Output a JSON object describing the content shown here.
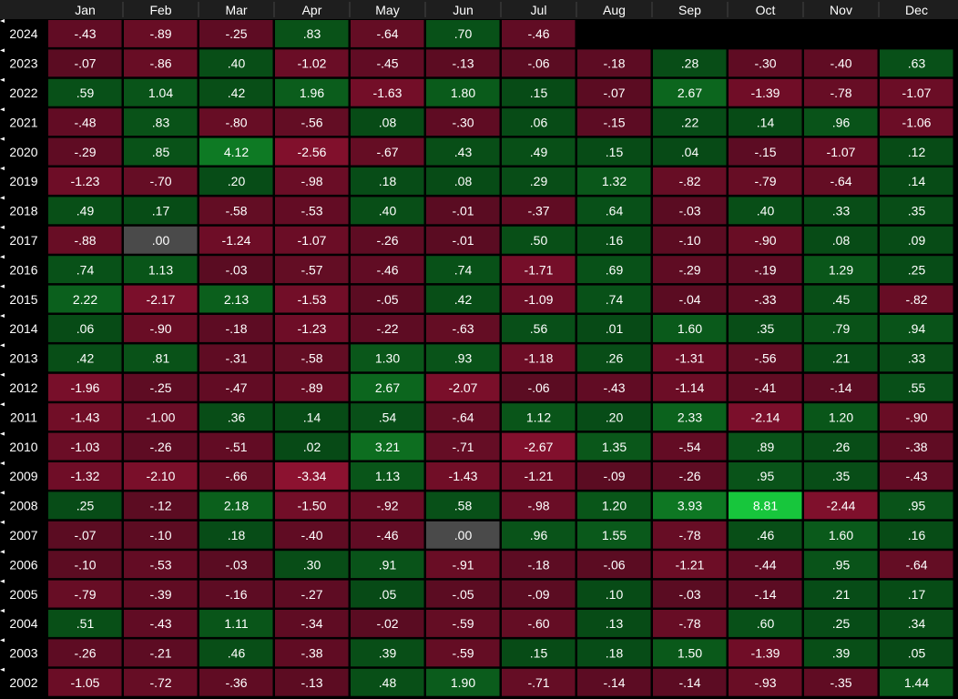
{
  "chart_data": {
    "type": "heatmap",
    "months": [
      "Jan",
      "Feb",
      "Mar",
      "Apr",
      "May",
      "Jun",
      "Jul",
      "Aug",
      "Sep",
      "Oct",
      "Nov",
      "Dec"
    ],
    "rows": [
      {
        "year": "2024",
        "values": [
          -0.43,
          -0.89,
          -0.25,
          0.83,
          -0.64,
          0.7,
          -0.46,
          null,
          null,
          null,
          null,
          null
        ],
        "labels": [
          "-.43",
          "-.89",
          "-.25",
          ".83",
          "-.64",
          ".70",
          "-.46",
          "",
          "",
          "",
          "",
          ""
        ]
      },
      {
        "year": "2023",
        "values": [
          -0.07,
          -0.86,
          0.4,
          -1.02,
          -0.45,
          -0.13,
          -0.06,
          -0.18,
          0.28,
          -0.3,
          -0.4,
          0.63
        ],
        "labels": [
          "-.07",
          "-.86",
          ".40",
          "-1.02",
          "-.45",
          "-.13",
          "-.06",
          "-.18",
          ".28",
          "-.30",
          "-.40",
          ".63"
        ]
      },
      {
        "year": "2022",
        "values": [
          0.59,
          1.04,
          0.42,
          1.96,
          -1.63,
          1.8,
          0.15,
          -0.07,
          2.67,
          -1.39,
          -0.78,
          -1.07
        ],
        "labels": [
          ".59",
          "1.04",
          ".42",
          "1.96",
          "-1.63",
          "1.80",
          ".15",
          "-.07",
          "2.67",
          "-1.39",
          "-.78",
          "-1.07"
        ]
      },
      {
        "year": "2021",
        "values": [
          -0.48,
          0.83,
          -0.8,
          -0.56,
          0.08,
          -0.3,
          0.06,
          -0.15,
          0.22,
          0.14,
          0.96,
          -1.06
        ],
        "labels": [
          "-.48",
          ".83",
          "-.80",
          "-.56",
          ".08",
          "-.30",
          ".06",
          "-.15",
          ".22",
          ".14",
          ".96",
          "-1.06"
        ]
      },
      {
        "year": "2020",
        "values": [
          -0.29,
          0.85,
          4.12,
          -2.56,
          -0.67,
          0.43,
          0.49,
          0.15,
          0.04,
          -0.15,
          -1.07,
          0.12
        ],
        "labels": [
          "-.29",
          ".85",
          "4.12",
          "-2.56",
          "-.67",
          ".43",
          ".49",
          ".15",
          ".04",
          "-.15",
          "-1.07",
          ".12"
        ]
      },
      {
        "year": "2019",
        "values": [
          -1.23,
          -0.7,
          0.2,
          -0.98,
          0.18,
          0.08,
          0.29,
          1.32,
          -0.82,
          -0.79,
          -0.64,
          0.14
        ],
        "labels": [
          "-1.23",
          "-.70",
          ".20",
          "-.98",
          ".18",
          ".08",
          ".29",
          "1.32",
          "-.82",
          "-.79",
          "-.64",
          ".14"
        ]
      },
      {
        "year": "2018",
        "values": [
          0.49,
          0.17,
          -0.58,
          -0.53,
          0.4,
          -0.01,
          -0.37,
          0.64,
          -0.03,
          0.4,
          0.33,
          0.35
        ],
        "labels": [
          ".49",
          ".17",
          "-.58",
          "-.53",
          ".40",
          "-.01",
          "-.37",
          ".64",
          "-.03",
          ".40",
          ".33",
          ".35"
        ]
      },
      {
        "year": "2017",
        "values": [
          -0.88,
          0.0,
          -1.24,
          -1.07,
          -0.26,
          -0.01,
          0.5,
          0.16,
          -0.1,
          -0.9,
          0.08,
          0.09
        ],
        "labels": [
          "-.88",
          ".00",
          "-1.24",
          "-1.07",
          "-.26",
          "-.01",
          ".50",
          ".16",
          "-.10",
          "-.90",
          ".08",
          ".09"
        ]
      },
      {
        "year": "2016",
        "values": [
          0.74,
          1.13,
          -0.03,
          -0.57,
          -0.46,
          0.74,
          -1.71,
          0.69,
          -0.29,
          -0.19,
          1.29,
          0.25
        ],
        "labels": [
          ".74",
          "1.13",
          "-.03",
          "-.57",
          "-.46",
          ".74",
          "-1.71",
          ".69",
          "-.29",
          "-.19",
          "1.29",
          ".25"
        ]
      },
      {
        "year": "2015",
        "values": [
          2.22,
          -2.17,
          2.13,
          -1.53,
          -0.05,
          0.42,
          -1.09,
          0.74,
          -0.04,
          -0.33,
          0.45,
          -0.82
        ],
        "labels": [
          "2.22",
          "-2.17",
          "2.13",
          "-1.53",
          "-.05",
          ".42",
          "-1.09",
          ".74",
          "-.04",
          "-.33",
          ".45",
          "-.82"
        ]
      },
      {
        "year": "2014",
        "values": [
          0.06,
          -0.9,
          -0.18,
          -1.23,
          -0.22,
          -0.63,
          0.56,
          0.01,
          1.6,
          0.35,
          0.79,
          0.94
        ],
        "labels": [
          ".06",
          "-.90",
          "-.18",
          "-1.23",
          "-.22",
          "-.63",
          ".56",
          ".01",
          "1.60",
          ".35",
          ".79",
          ".94"
        ]
      },
      {
        "year": "2013",
        "values": [
          0.42,
          0.81,
          -0.31,
          -0.58,
          1.3,
          0.93,
          -1.18,
          0.26,
          -1.31,
          -0.56,
          0.21,
          0.33
        ],
        "labels": [
          ".42",
          ".81",
          "-.31",
          "-.58",
          "1.30",
          ".93",
          "-1.18",
          ".26",
          "-1.31",
          "-.56",
          ".21",
          ".33"
        ]
      },
      {
        "year": "2012",
        "values": [
          -1.96,
          -0.25,
          -0.47,
          -0.89,
          2.67,
          -2.07,
          -0.06,
          -0.43,
          -1.14,
          -0.41,
          -0.14,
          0.55
        ],
        "labels": [
          "-1.96",
          "-.25",
          "-.47",
          "-.89",
          "2.67",
          "-2.07",
          "-.06",
          "-.43",
          "-1.14",
          "-.41",
          "-.14",
          ".55"
        ]
      },
      {
        "year": "2011",
        "values": [
          -1.43,
          -1.0,
          0.36,
          0.14,
          0.54,
          -0.64,
          1.12,
          0.2,
          2.33,
          -2.14,
          1.2,
          -0.9
        ],
        "labels": [
          "-1.43",
          "-1.00",
          ".36",
          ".14",
          ".54",
          "-.64",
          "1.12",
          ".20",
          "2.33",
          "-2.14",
          "1.20",
          "-.90"
        ]
      },
      {
        "year": "2010",
        "values": [
          -1.03,
          -0.26,
          -0.51,
          0.02,
          3.21,
          -0.71,
          -2.67,
          1.35,
          -0.54,
          0.89,
          0.26,
          -0.38
        ],
        "labels": [
          "-1.03",
          "-.26",
          "-.51",
          ".02",
          "3.21",
          "-.71",
          "-2.67",
          "1.35",
          "-.54",
          ".89",
          ".26",
          "-.38"
        ]
      },
      {
        "year": "2009",
        "values": [
          -1.32,
          -2.1,
          -0.66,
          -3.34,
          1.13,
          -1.43,
          -1.21,
          -0.09,
          -0.26,
          0.95,
          0.35,
          -0.43
        ],
        "labels": [
          "-1.32",
          "-2.10",
          "-.66",
          "-3.34",
          "1.13",
          "-1.43",
          "-1.21",
          "-.09",
          "-.26",
          ".95",
          ".35",
          "-.43"
        ]
      },
      {
        "year": "2008",
        "values": [
          0.25,
          -0.12,
          2.18,
          -1.5,
          -0.92,
          0.58,
          -0.98,
          1.2,
          3.93,
          8.81,
          -2.44,
          0.95
        ],
        "labels": [
          ".25",
          "-.12",
          "2.18",
          "-1.50",
          "-.92",
          ".58",
          "-.98",
          "1.20",
          "3.93",
          "8.81",
          "-2.44",
          ".95"
        ]
      },
      {
        "year": "2007",
        "values": [
          -0.07,
          -0.1,
          0.18,
          -0.4,
          -0.46,
          0.0,
          0.96,
          1.55,
          -0.78,
          0.46,
          1.6,
          0.16
        ],
        "labels": [
          "-.07",
          "-.10",
          ".18",
          "-.40",
          "-.46",
          ".00",
          ".96",
          "1.55",
          "-.78",
          ".46",
          "1.60",
          ".16"
        ]
      },
      {
        "year": "2006",
        "values": [
          -0.1,
          -0.53,
          -0.03,
          0.3,
          0.91,
          -0.91,
          -0.18,
          -0.06,
          -1.21,
          -0.44,
          0.95,
          -0.64
        ],
        "labels": [
          "-.10",
          "-.53",
          "-.03",
          ".30",
          ".91",
          "-.91",
          "-.18",
          "-.06",
          "-1.21",
          "-.44",
          ".95",
          "-.64"
        ]
      },
      {
        "year": "2005",
        "values": [
          -0.79,
          -0.39,
          -0.16,
          -0.27,
          0.05,
          -0.05,
          -0.09,
          0.1,
          -0.03,
          -0.14,
          0.21,
          0.17
        ],
        "labels": [
          "-.79",
          "-.39",
          "-.16",
          "-.27",
          ".05",
          "-.05",
          "-.09",
          ".10",
          "-.03",
          "-.14",
          ".21",
          ".17"
        ]
      },
      {
        "year": "2004",
        "values": [
          0.51,
          -0.43,
          1.11,
          -0.34,
          -0.02,
          -0.59,
          -0.6,
          0.13,
          -0.78,
          0.6,
          0.25,
          0.34
        ],
        "labels": [
          ".51",
          "-.43",
          "1.11",
          "-.34",
          "-.02",
          "-.59",
          "-.60",
          ".13",
          "-.78",
          ".60",
          ".25",
          ".34"
        ]
      },
      {
        "year": "2003",
        "values": [
          -0.26,
          -0.21,
          0.46,
          -0.38,
          0.39,
          -0.59,
          0.15,
          0.18,
          1.5,
          -1.39,
          0.39,
          0.05
        ],
        "labels": [
          "-.26",
          "-.21",
          ".46",
          "-.38",
          ".39",
          "-.59",
          ".15",
          ".18",
          "1.50",
          "-1.39",
          ".39",
          ".05"
        ]
      },
      {
        "year": "2002",
        "values": [
          -1.05,
          -0.72,
          -0.36,
          -0.13,
          0.48,
          1.9,
          -0.71,
          -0.14,
          -0.14,
          -0.93,
          -0.35,
          1.44
        ],
        "labels": [
          "-1.05",
          "-.72",
          "-.36",
          "-.13",
          ".48",
          "1.90",
          "-.71",
          "-.14",
          "-.14",
          "-.93",
          "-.35",
          "1.44"
        ]
      }
    ],
    "colors": {
      "background": "#000000",
      "header_bg": "#1e1e1e",
      "zero": "#4a4a4a",
      "text": "#ffffff",
      "negative_scale": [
        "#5a0c22",
        "#6c0d26",
        "#7c0f2b",
        "#8c1230"
      ],
      "positive_scale": [
        "#074a16",
        "#0b5e1c",
        "#0e7a24",
        "#17c63c"
      ]
    }
  }
}
